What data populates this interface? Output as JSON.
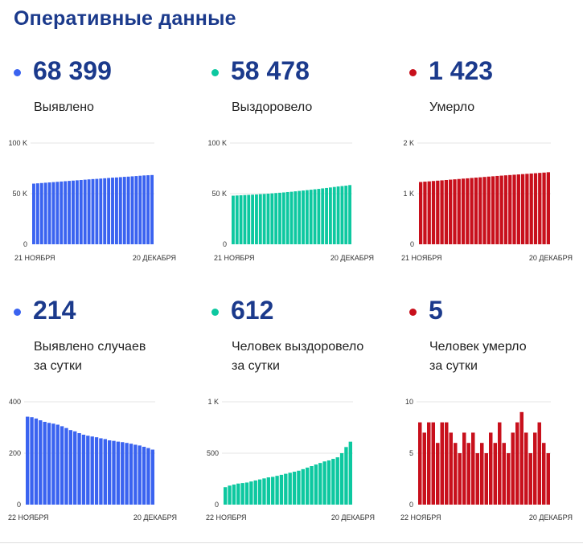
{
  "page_title": "Оперативные данные",
  "colors": {
    "blue": "#3a63f0",
    "green": "#0dc8a0",
    "red": "#c8101c",
    "title": "#1b3a8c"
  },
  "stats": [
    {
      "value": "68 399",
      "label": "Выявлено",
      "color": "#3a63f0"
    },
    {
      "value": "58 478",
      "label": "Выздоровело",
      "color": "#0dc8a0"
    },
    {
      "value": "1 423",
      "label": "Умерло",
      "color": "#c8101c"
    },
    {
      "value": "214",
      "label": "Выявлено случаев\nза сутки",
      "color": "#3a63f0"
    },
    {
      "value": "612",
      "label": "Человек выздоровело\nза сутки",
      "color": "#0dc8a0"
    },
    {
      "value": "5",
      "label": "Человек умерло\nза сутки",
      "color": "#c8101c"
    }
  ],
  "chart_data": [
    {
      "type": "bar",
      "color": "#3a63f0",
      "ylim": [
        0,
        100000
      ],
      "yticks": [
        0,
        50000,
        100000
      ],
      "yticklabels": [
        "0",
        "50 K",
        "100 K"
      ],
      "x_start_label": "21 НОЯБРЯ",
      "x_end_label": "20 ДЕКАБРЯ",
      "values": [
        59900,
        60200,
        60500,
        60800,
        61100,
        61400,
        61700,
        62000,
        62300,
        62600,
        62900,
        63200,
        63500,
        63800,
        64100,
        64400,
        64600,
        64900,
        65200,
        65500,
        65800,
        66000,
        66300,
        66600,
        66800,
        67100,
        67400,
        67700,
        68000,
        68200,
        68399
      ]
    },
    {
      "type": "bar",
      "color": "#0dc8a0",
      "ylim": [
        0,
        100000
      ],
      "yticks": [
        0,
        50000,
        100000
      ],
      "yticklabels": [
        "0",
        "50 K",
        "100 K"
      ],
      "x_start_label": "21 НОЯБРЯ",
      "x_end_label": "20 ДЕКАБРЯ",
      "values": [
        48000,
        48200,
        48400,
        48600,
        48800,
        49000,
        49200,
        49500,
        49700,
        50000,
        50300,
        50600,
        50900,
        51200,
        51600,
        51900,
        52300,
        52700,
        53100,
        53500,
        53900,
        54300,
        54700,
        55200,
        55600,
        56100,
        56600,
        57100,
        57500,
        57900,
        58478
      ]
    },
    {
      "type": "bar",
      "color": "#c8101c",
      "ylim": [
        0,
        2000
      ],
      "yticks": [
        0,
        1000,
        2000
      ],
      "yticklabels": [
        "0",
        "1 K",
        "2 K"
      ],
      "x_start_label": "21 НОЯБРЯ",
      "x_end_label": "20 ДЕКАБРЯ",
      "values": [
        1230,
        1237,
        1243,
        1250,
        1257,
        1263,
        1270,
        1277,
        1283,
        1290,
        1297,
        1303,
        1310,
        1317,
        1323,
        1330,
        1337,
        1343,
        1350,
        1356,
        1362,
        1368,
        1374,
        1380,
        1386,
        1392,
        1398,
        1404,
        1410,
        1416,
        1423
      ]
    },
    {
      "type": "bar",
      "color": "#3a63f0",
      "ylim": [
        0,
        400
      ],
      "yticks": [
        0,
        200,
        400
      ],
      "yticklabels": [
        "0",
        "200",
        "400"
      ],
      "x_start_label": "22 НОЯБРЯ",
      "x_end_label": "20 ДЕКАБРЯ",
      "values": [
        342,
        340,
        335,
        328,
        322,
        318,
        315,
        311,
        305,
        298,
        290,
        285,
        278,
        272,
        268,
        265,
        262,
        258,
        255,
        250,
        248,
        245,
        243,
        240,
        237,
        233,
        230,
        225,
        220,
        214
      ]
    },
    {
      "type": "bar",
      "color": "#0dc8a0",
      "ylim": [
        0,
        1000
      ],
      "yticks": [
        0,
        500,
        1000
      ],
      "yticklabels": [
        "0",
        "500",
        "1 K"
      ],
      "x_start_label": "22 НОЯБРЯ",
      "x_end_label": "20 ДЕКАБРЯ",
      "values": [
        170,
        185,
        195,
        205,
        210,
        215,
        225,
        235,
        245,
        255,
        265,
        270,
        280,
        290,
        300,
        310,
        320,
        330,
        345,
        360,
        375,
        390,
        405,
        420,
        430,
        445,
        460,
        500,
        560,
        612
      ]
    },
    {
      "type": "bar",
      "color": "#c8101c",
      "ylim": [
        0,
        10
      ],
      "yticks": [
        0,
        5,
        10
      ],
      "yticklabels": [
        "0",
        "5",
        "10"
      ],
      "x_start_label": "22 НОЯБРЯ",
      "x_end_label": "20 ДЕКАБРЯ",
      "values": [
        8,
        7,
        8,
        8,
        6,
        8,
        8,
        7,
        6,
        5,
        7,
        6,
        7,
        5,
        6,
        5,
        7,
        6,
        8,
        6,
        5,
        7,
        8,
        9,
        7,
        5,
        7,
        8,
        6,
        5
      ]
    }
  ]
}
